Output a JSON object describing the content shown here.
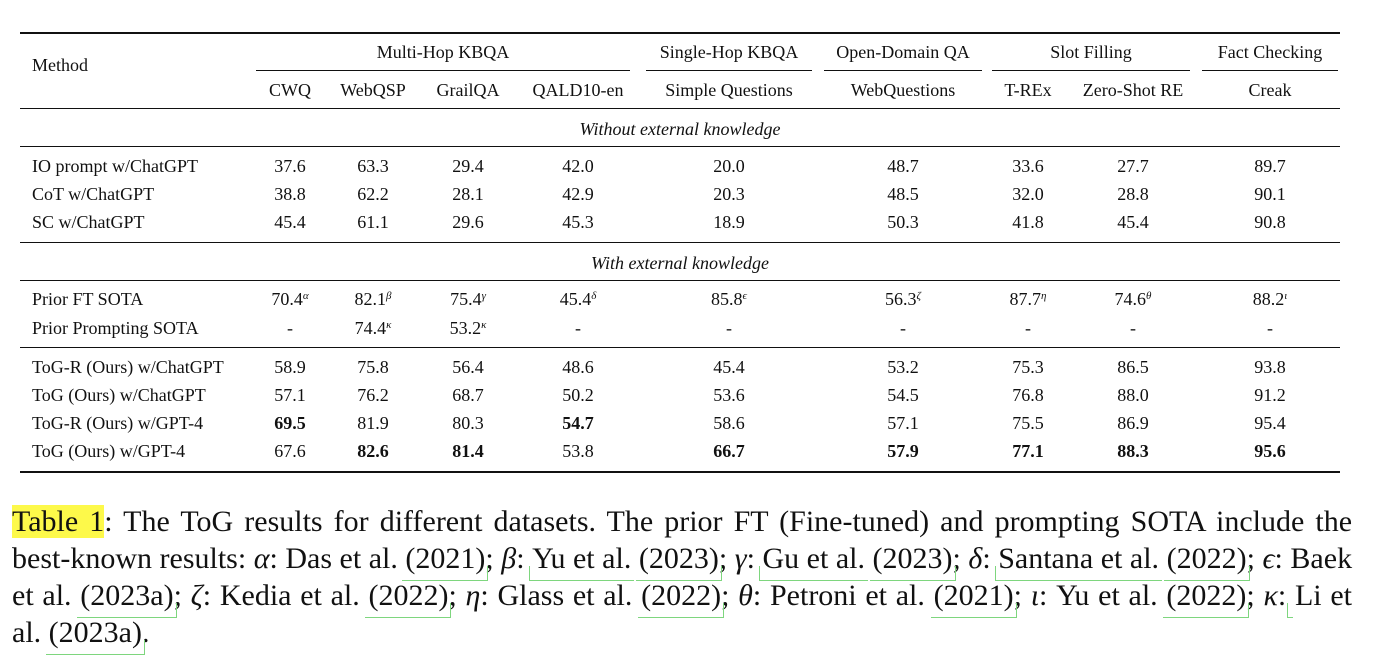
{
  "table": {
    "method_header": "Method",
    "groups": [
      {
        "label": "Multi-Hop KBQA"
      },
      {
        "label": "Single-Hop KBQA"
      },
      {
        "label": "Open-Domain QA"
      },
      {
        "label": "Slot Filling"
      },
      {
        "label": "Fact Checking"
      }
    ],
    "columns": [
      "CWQ",
      "WebQSP",
      "GrailQA",
      "QALD10-en",
      "Simple Questions",
      "WebQuestions",
      "T-REx",
      "Zero-Shot RE",
      "Creak"
    ],
    "sections": [
      {
        "title": "Without external knowledge",
        "rows": [
          {
            "method": "IO prompt w/ChatGPT",
            "cells": [
              {
                "v": "37.6"
              },
              {
                "v": "63.3"
              },
              {
                "v": "29.4"
              },
              {
                "v": "42.0"
              },
              {
                "v": "20.0"
              },
              {
                "v": "48.7"
              },
              {
                "v": "33.6"
              },
              {
                "v": "27.7"
              },
              {
                "v": "89.7"
              }
            ]
          },
          {
            "method": "CoT w/ChatGPT",
            "cells": [
              {
                "v": "38.8"
              },
              {
                "v": "62.2"
              },
              {
                "v": "28.1"
              },
              {
                "v": "42.9"
              },
              {
                "v": "20.3"
              },
              {
                "v": "48.5"
              },
              {
                "v": "32.0"
              },
              {
                "v": "28.8"
              },
              {
                "v": "90.1"
              }
            ]
          },
          {
            "method": "SC w/ChatGPT",
            "cells": [
              {
                "v": "45.4"
              },
              {
                "v": "61.1"
              },
              {
                "v": "29.6"
              },
              {
                "v": "45.3"
              },
              {
                "v": "18.9"
              },
              {
                "v": "50.3"
              },
              {
                "v": "41.8"
              },
              {
                "v": "45.4"
              },
              {
                "v": "90.8"
              }
            ]
          }
        ]
      },
      {
        "title": "With external knowledge",
        "rows": [
          {
            "method": "Prior FT SOTA",
            "cells": [
              {
                "v": "70.4",
                "sup": "α"
              },
              {
                "v": "82.1",
                "sup": "β"
              },
              {
                "v": "75.4",
                "sup": "γ"
              },
              {
                "v": "45.4",
                "sup": "δ"
              },
              {
                "v": "85.8",
                "sup": "ϵ"
              },
              {
                "v": "56.3",
                "sup": "ζ"
              },
              {
                "v": "87.7",
                "sup": "η"
              },
              {
                "v": "74.6",
                "sup": "θ"
              },
              {
                "v": "88.2",
                "sup": "ι"
              }
            ]
          },
          {
            "method": "Prior Prompting SOTA",
            "cells": [
              {
                "v": "-"
              },
              {
                "v": "74.4",
                "sup": "κ"
              },
              {
                "v": "53.2",
                "sup": "κ"
              },
              {
                "v": "-"
              },
              {
                "v": "-"
              },
              {
                "v": "-"
              },
              {
                "v": "-"
              },
              {
                "v": "-"
              },
              {
                "v": "-"
              }
            ]
          }
        ]
      },
      {
        "title": "",
        "rows": [
          {
            "method": "ToG-R (Ours) w/ChatGPT",
            "cells": [
              {
                "v": "58.9"
              },
              {
                "v": "75.8"
              },
              {
                "v": "56.4"
              },
              {
                "v": "48.6"
              },
              {
                "v": "45.4"
              },
              {
                "v": "53.2"
              },
              {
                "v": "75.3"
              },
              {
                "v": "86.5"
              },
              {
                "v": "93.8"
              }
            ]
          },
          {
            "method": "ToG (Ours) w/ChatGPT",
            "cells": [
              {
                "v": "57.1"
              },
              {
                "v": "76.2"
              },
              {
                "v": "68.7"
              },
              {
                "v": "50.2"
              },
              {
                "v": "53.6"
              },
              {
                "v": "54.5"
              },
              {
                "v": "76.8"
              },
              {
                "v": "88.0"
              },
              {
                "v": "91.2"
              }
            ]
          },
          {
            "method": "ToG-R (Ours) w/GPT-4",
            "cells": [
              {
                "v": "69.5",
                "bold": true
              },
              {
                "v": "81.9"
              },
              {
                "v": "80.3"
              },
              {
                "v": "54.7",
                "bold": true
              },
              {
                "v": "58.6"
              },
              {
                "v": "57.1"
              },
              {
                "v": "75.5"
              },
              {
                "v": "86.9"
              },
              {
                "v": "95.4"
              }
            ]
          },
          {
            "method": "ToG (Ours) w/GPT-4",
            "cells": [
              {
                "v": "67.6"
              },
              {
                "v": "82.6",
                "bold": true
              },
              {
                "v": "81.4",
                "bold": true
              },
              {
                "v": "53.8"
              },
              {
                "v": "66.7",
                "bold": true
              },
              {
                "v": "57.9",
                "bold": true
              },
              {
                "v": "77.1",
                "bold": true
              },
              {
                "v": "88.3",
                "bold": true
              },
              {
                "v": "95.6",
                "bold": true
              }
            ]
          }
        ]
      }
    ]
  },
  "caption": {
    "label": "Table 1",
    "intro": ": The ToG results for different datasets. The prior FT (Fine-tuned) and prompting SOTA include the best-known results: ",
    "refs": [
      {
        "sym": "α",
        "author": "Das et al.",
        "year": "(2021)"
      },
      {
        "sym": "β",
        "author": "Yu et al.",
        "year": "(2023)"
      },
      {
        "sym": "γ",
        "author": "Gu et al.",
        "year": "(2023)"
      },
      {
        "sym": "δ",
        "author": "Santana et al.",
        "year": "(2022)"
      },
      {
        "sym": "ϵ",
        "author": "Baek et al.",
        "year": "(2023a)"
      },
      {
        "sym": "ζ",
        "author": "Kedia et al.",
        "year": "(2022)"
      },
      {
        "sym": "η",
        "author": "Glass et al.",
        "year": "(2022)"
      },
      {
        "sym": "θ",
        "author": "Petroni et al.",
        "year": "(2021)"
      },
      {
        "sym": "ι",
        "author": "Yu et al.",
        "year": "(2022)"
      },
      {
        "sym": "κ",
        "author": "Li et al.",
        "year": "(2023a)"
      }
    ]
  }
}
